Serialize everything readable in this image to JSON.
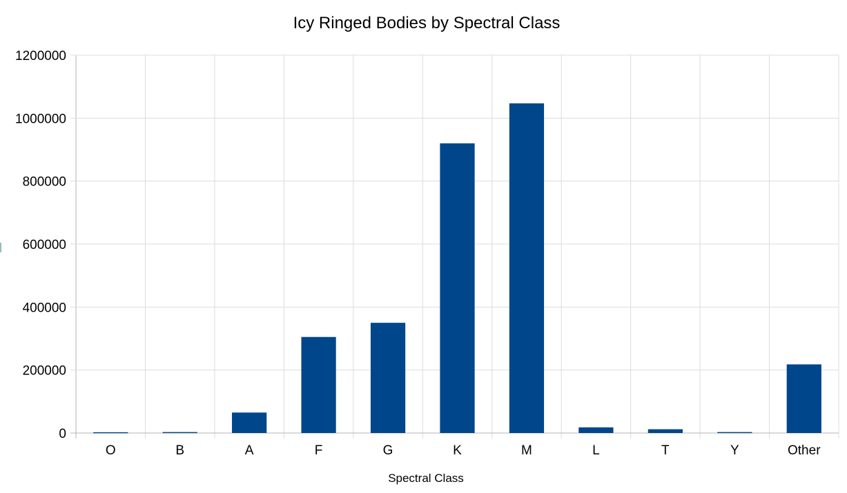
{
  "chart_data": {
    "type": "bar",
    "title": "Icy Ringed Bodies by Spectral Class",
    "xlabel": "Spectral Class",
    "ylabel": "",
    "categories": [
      "O",
      "B",
      "A",
      "F",
      "G",
      "K",
      "M",
      "L",
      "T",
      "Y",
      "Other"
    ],
    "values": [
      2500,
      3000,
      65000,
      305000,
      350000,
      920000,
      1047000,
      18000,
      12000,
      3000,
      218000
    ],
    "ylim": [
      0,
      1200000
    ],
    "yticks": [
      "0",
      "200000",
      "400000",
      "600000",
      "800000",
      "1000000",
      "1200000"
    ],
    "grid": true,
    "legend": "none",
    "bar_color": "#00468b"
  }
}
